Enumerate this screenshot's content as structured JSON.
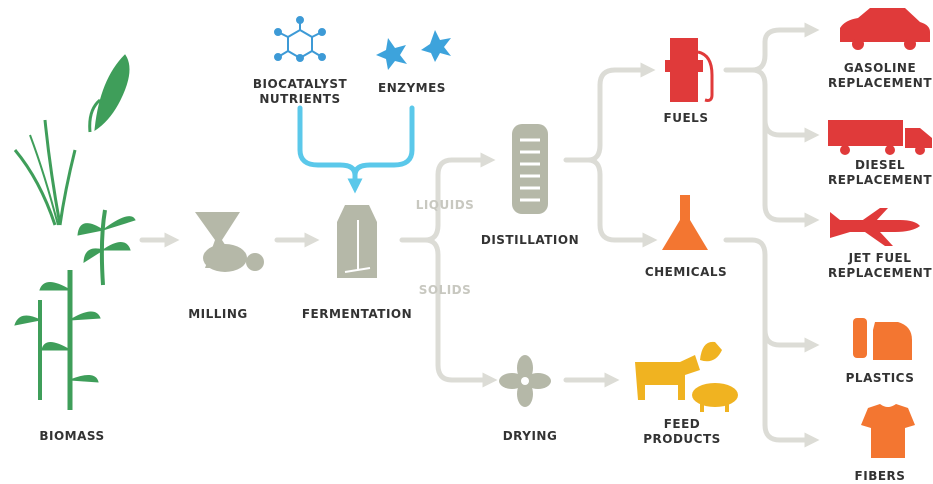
{
  "nodes": [
    {
      "label": [
        "BIOMASS"
      ]
    },
    {
      "label": [
        "MILLING"
      ]
    },
    {
      "label": [
        "FERMENTATION"
      ]
    },
    {
      "label": [
        "BIOCATALYST",
        "NUTRIENTS"
      ]
    },
    {
      "label": [
        "ENZYMES"
      ]
    },
    {
      "label": [
        "DISTILLATION"
      ]
    },
    {
      "label": [
        "DRYING"
      ]
    },
    {
      "label": [
        "FUELS"
      ]
    },
    {
      "label": [
        "CHEMICALS"
      ]
    },
    {
      "label": [
        "FEED",
        "PRODUCTS"
      ]
    },
    {
      "label": [
        "GASOLINE",
        "REPLACEMENT"
      ]
    },
    {
      "label": [
        "DIESEL",
        "REPLACEMENT"
      ]
    },
    {
      "label": [
        "JET FUEL",
        "REPLACEMENT"
      ]
    },
    {
      "label": [
        "PLASTICS"
      ]
    },
    {
      "label": [
        "FIBERS"
      ]
    }
  ],
  "edge_labels": [
    "LIQUIDS",
    "SOLIDS"
  ]
}
